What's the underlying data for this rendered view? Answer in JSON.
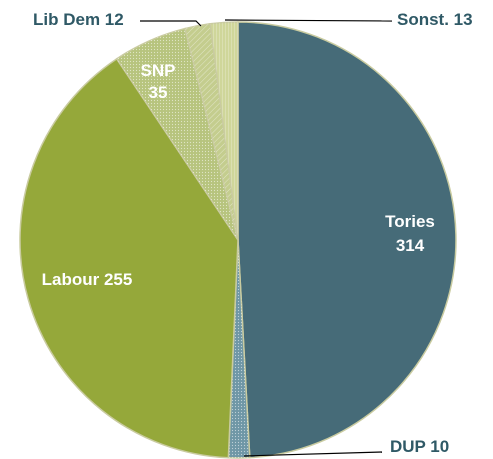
{
  "chart_data": {
    "type": "pie",
    "title": "",
    "total": 639,
    "slices": [
      {
        "name": "Tories",
        "value": 314,
        "label_lines": [
          "Tories",
          "314"
        ],
        "color": "#466b78",
        "text_color": "#ffffff",
        "pattern": "none",
        "label_mode": "inside"
      },
      {
        "name": "DUP",
        "value": 10,
        "label_lines": [
          "DUP 10"
        ],
        "color": "#6f97a6",
        "text_color": "#2f5966",
        "pattern": "dots",
        "label_mode": "callout"
      },
      {
        "name": "Labour",
        "value": 255,
        "label_lines": [
          "Labour 255"
        ],
        "color": "#95a83a",
        "text_color": "#ffffff",
        "pattern": "none",
        "label_mode": "inside"
      },
      {
        "name": "SNP",
        "value": 35,
        "label_lines": [
          "SNP",
          "35"
        ],
        "color": "#b7c47e",
        "text_color": "#ffffff",
        "pattern": "dots",
        "label_mode": "inside"
      },
      {
        "name": "Lib Dem",
        "value": 12,
        "label_lines": [
          "Lib Dem 12"
        ],
        "color": "#c4cd8e",
        "text_color": "#2f5966",
        "pattern": "hatch",
        "label_mode": "callout"
      },
      {
        "name": "Sonst.",
        "value": 13,
        "label_lines": [
          "Sonst. 13"
        ],
        "color": "#cfd69a",
        "text_color": "#2f5966",
        "pattern": "lines",
        "label_mode": "callout"
      }
    ],
    "start_angle_deg": 0,
    "direction": "clockwise",
    "slice_border_color": "#c9cba0",
    "legend": "none"
  }
}
